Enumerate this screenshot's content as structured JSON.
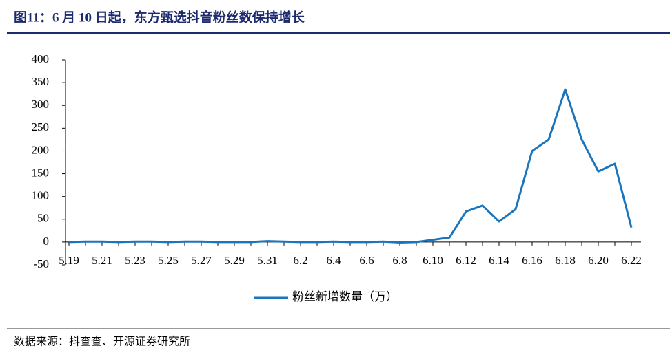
{
  "chart_data": {
    "type": "line",
    "title": "图11：6 月 10 日起，东方甄选抖音粉丝数保持增长",
    "source": "数据来源：抖查查、开源证券研究所",
    "categories": [
      "5.19",
      null,
      "5.21",
      null,
      "5.23",
      null,
      "5.25",
      null,
      "5.27",
      null,
      "5.29",
      null,
      "5.31",
      null,
      "6.2",
      null,
      "6.4",
      null,
      "6.6",
      null,
      "6.8",
      null,
      "6.10",
      null,
      "6.12",
      null,
      "6.14",
      null,
      "6.16",
      null,
      "6.18",
      null,
      "6.20",
      null,
      "6.22"
    ],
    "series": [
      {
        "name": "粉丝新增数量（万）",
        "color": "#1a75bc",
        "values": [
          0,
          1,
          1,
          0,
          1,
          1,
          0,
          1,
          1,
          0,
          0,
          0,
          2,
          1,
          0,
          0,
          1,
          0,
          0,
          1,
          -1,
          0,
          5,
          10,
          67,
          80,
          45,
          72,
          200,
          225,
          335,
          225,
          155,
          172,
          32
        ]
      }
    ],
    "ylim": [
      -50,
      400
    ],
    "yticks": [
      -50,
      0,
      50,
      100,
      150,
      200,
      250,
      300,
      350,
      400
    ],
    "legend": "bottom"
  }
}
